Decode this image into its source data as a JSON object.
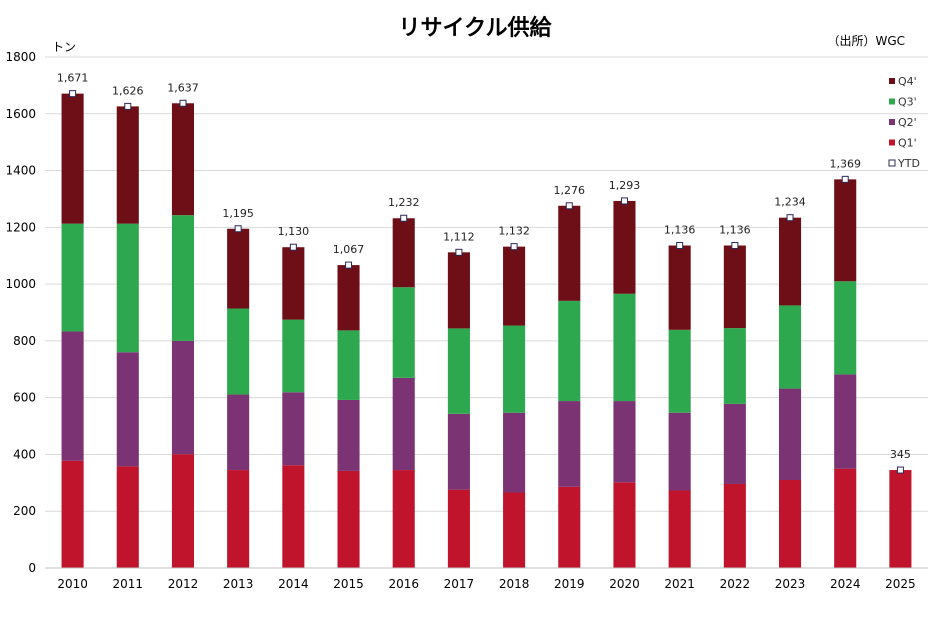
{
  "chart_data": {
    "type": "bar",
    "stacked": true,
    "title": "リサイクル供給",
    "source": "（出所）WGC",
    "ylabel": "トン",
    "ylim": [
      0,
      1800
    ],
    "yticks": [
      "0",
      "200",
      "400",
      "600",
      "800",
      "1000",
      "1200",
      "1400",
      "1600",
      "1800"
    ],
    "categories": [
      "2010",
      "2011",
      "2012",
      "2013",
      "2014",
      "2015",
      "2016",
      "2017",
      "2018",
      "2019",
      "2020",
      "2021",
      "2022",
      "2023",
      "2024",
      "2025"
    ],
    "series": [
      {
        "name": "Q1'",
        "color": "#c0142c",
        "values": [
          378,
          358,
          401,
          345,
          362,
          342,
          345,
          276,
          266,
          286,
          302,
          273,
          296,
          310,
          350,
          345
        ]
      },
      {
        "name": "Q2'",
        "color": "#7b3373",
        "values": [
          455,
          402,
          399,
          266,
          257,
          250,
          325,
          267,
          281,
          302,
          286,
          274,
          282,
          322,
          332,
          0
        ]
      },
      {
        "name": "Q3'",
        "color": "#2ea84f",
        "values": [
          380,
          453,
          443,
          303,
          256,
          245,
          319,
          301,
          307,
          353,
          378,
          292,
          267,
          293,
          328,
          0
        ]
      },
      {
        "name": "Q4'",
        "color": "#6e0e16",
        "values": [
          458,
          413,
          394,
          281,
          255,
          230,
          243,
          268,
          278,
          335,
          327,
          297,
          291,
          309,
          359,
          0
        ]
      }
    ],
    "ytd": {
      "name": "YTD",
      "values": [
        1671,
        1626,
        1637,
        1195,
        1130,
        1067,
        1232,
        1112,
        1132,
        1276,
        1293,
        1136,
        1136,
        1234,
        1369,
        345
      ]
    },
    "data_labels": [
      "1,671",
      "1,626",
      "1,637",
      "1,195",
      "1,130",
      "1,067",
      "1,232",
      "1,112",
      "1,132",
      "1,276",
      "1,293",
      "1,136",
      "1,136",
      "1,234",
      "1,369",
      "345"
    ],
    "legend": {
      "placement": "top-right",
      "items": [
        {
          "label": "Q4'",
          "color": "#6e0e16",
          "kind": "square"
        },
        {
          "label": "Q3'",
          "color": "#2ea84f",
          "kind": "square"
        },
        {
          "label": "Q2'",
          "color": "#7b3373",
          "kind": "square"
        },
        {
          "label": "Q1'",
          "color": "#c0142c",
          "kind": "square"
        },
        {
          "label": "YTD",
          "color": "#ffffff",
          "kind": "marker"
        }
      ]
    },
    "grid": true
  }
}
